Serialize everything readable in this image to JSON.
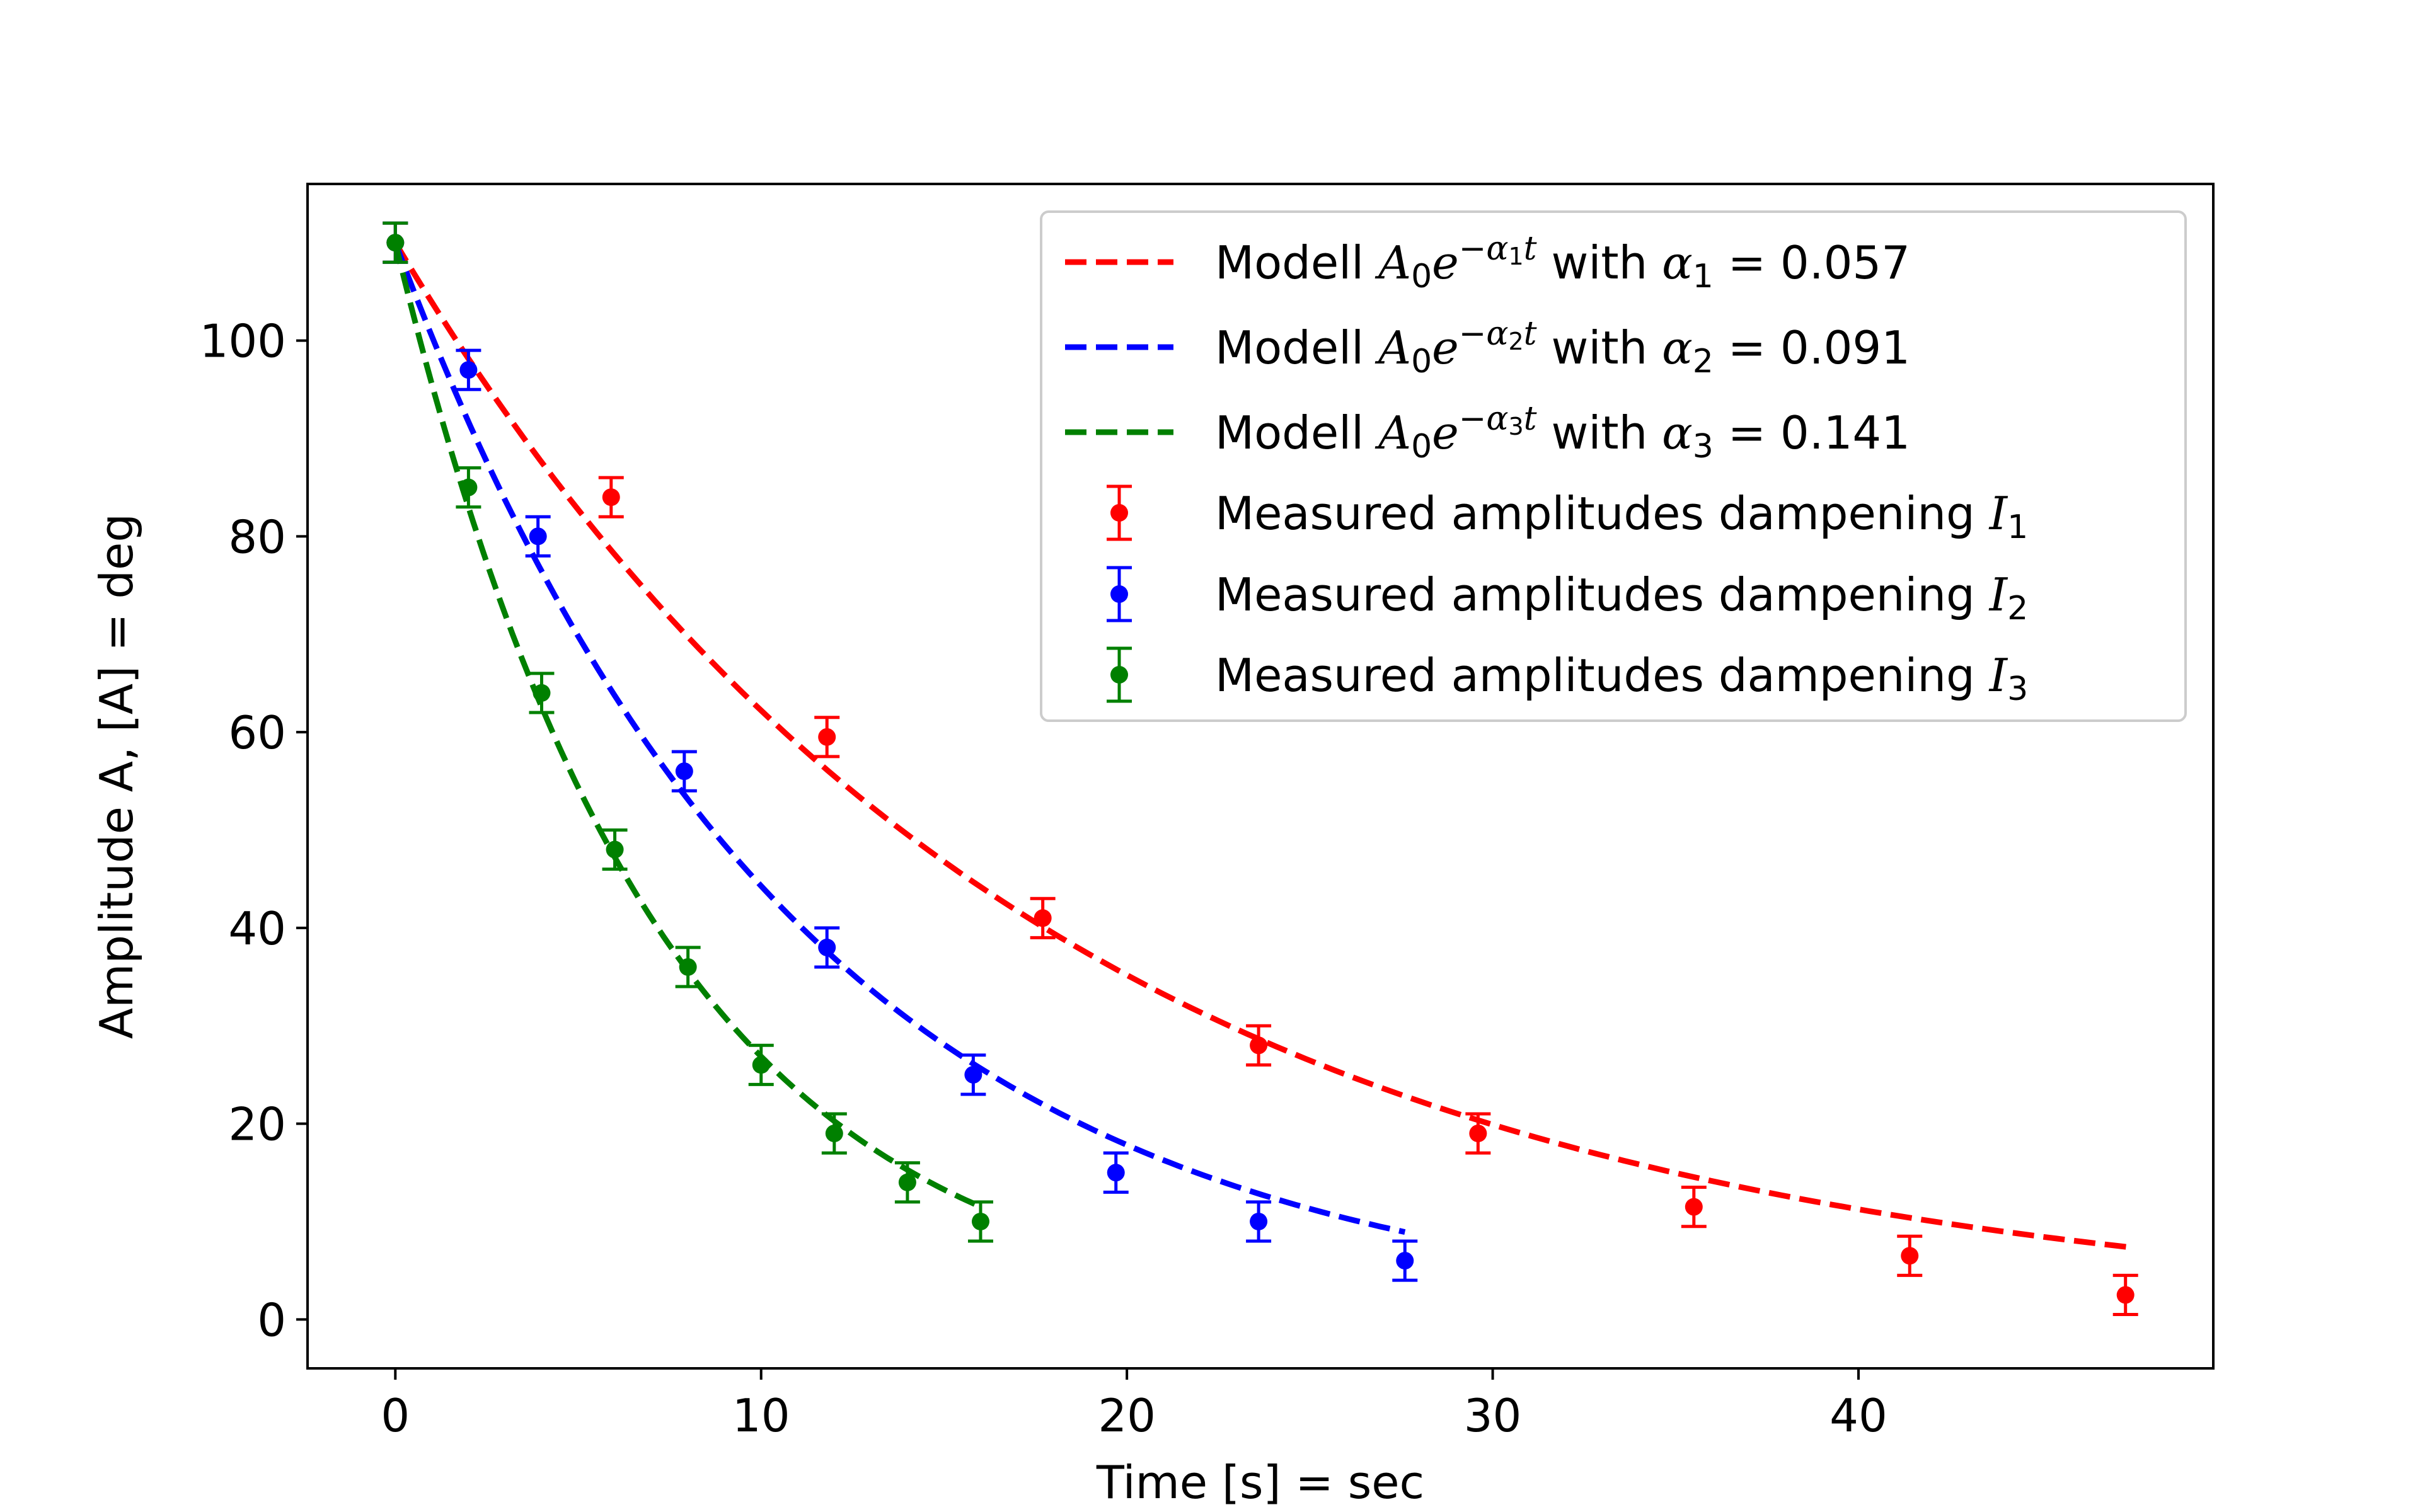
{
  "chart_data": {
    "type": "scatter",
    "title": "",
    "xlabel": "Time [s] = sec",
    "ylabel": "Amplitude A, [A] = deg",
    "xlim": [
      -2.4,
      49.7
    ],
    "ylim": [
      -5,
      116
    ],
    "xticks": [
      0,
      10,
      20,
      30,
      40
    ],
    "yticks": [
      0,
      20,
      40,
      60,
      80,
      100
    ],
    "xtick_labels": [
      "0",
      "10",
      "20",
      "30",
      "40"
    ],
    "ytick_labels": [
      "0",
      "20",
      "40",
      "60",
      "80",
      "100"
    ],
    "grid": false,
    "legend_position": "upper-right",
    "A0": 110,
    "models": [
      {
        "name": "Modell A0e^(−α1 t) with α1 = 0.057",
        "label_prefix": "Modell ",
        "label_suffix": " with ",
        "alpha_symbol": "α",
        "index": "1",
        "alpha_value": "= 0.057",
        "alpha": 0.057,
        "t_range": [
          0,
          47.4
        ],
        "color": "#ff0000",
        "style": "dashed"
      },
      {
        "name": "Modell A0e^(−α2 t) with α2 = 0.091",
        "label_prefix": "Modell ",
        "label_suffix": " with ",
        "alpha_symbol": "α",
        "index": "2",
        "alpha_value": "= 0.091",
        "alpha": 0.091,
        "t_range": [
          0,
          27.6
        ],
        "color": "#0000ff",
        "style": "dashed"
      },
      {
        "name": "Modell A0e^(−α3 t) with α3 = 0.141",
        "label_prefix": "Modell ",
        "label_suffix": " with ",
        "alpha_symbol": "α",
        "index": "3",
        "alpha_value": "= 0.141",
        "alpha": 0.141,
        "t_range": [
          0,
          16
        ],
        "color": "#008000",
        "style": "dashed"
      }
    ],
    "series": [
      {
        "name": "Measured amplitudes dampening I1",
        "label_text": "Measured amplitudes dampening ",
        "label_symbol": "I",
        "index": "1",
        "color": "#ff0000",
        "x": [
          0,
          5.9,
          11.8,
          17.7,
          23.6,
          29.6,
          35.5,
          41.4,
          47.3
        ],
        "y": [
          110,
          84,
          59.5,
          41,
          28,
          19,
          11.5,
          6.5,
          2.5
        ],
        "yerr": 2
      },
      {
        "name": "Measured amplitudes dampening I2",
        "label_text": "Measured amplitudes dampening ",
        "label_symbol": "I",
        "index": "2",
        "color": "#0000ff",
        "x": [
          0,
          2,
          3.9,
          7.9,
          11.8,
          15.8,
          19.7,
          23.6,
          27.6
        ],
        "y": [
          110,
          97,
          80,
          56,
          38,
          25,
          15,
          10,
          6
        ],
        "yerr": 2
      },
      {
        "name": "Measured amplitudes dampening I3",
        "label_text": "Measured amplitudes dampening ",
        "label_symbol": "I",
        "index": "3",
        "color": "#008000",
        "x": [
          0,
          2,
          4,
          6,
          8,
          10,
          12,
          14,
          16
        ],
        "y": [
          110,
          85,
          64,
          48,
          36,
          26,
          19,
          14,
          10
        ],
        "yerr": 2
      }
    ]
  }
}
